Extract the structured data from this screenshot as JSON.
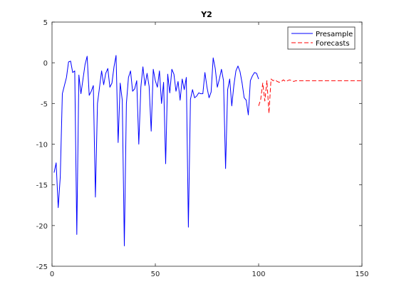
{
  "chart_data": {
    "type": "line",
    "title": "Y2",
    "xlabel": "",
    "ylabel": "",
    "xlim": [
      0,
      150
    ],
    "ylim": [
      -25,
      5
    ],
    "xticks": [
      0,
      50,
      100,
      150
    ],
    "yticks": [
      5,
      0,
      -5,
      -10,
      -15,
      -20,
      -25
    ],
    "grid": false,
    "legend_position": "top-right",
    "series": [
      {
        "name": "Presample",
        "color": "#0000ff",
        "style": "solid",
        "x": [
          1,
          2,
          3,
          4,
          5,
          6,
          7,
          8,
          9,
          10,
          11,
          12,
          13,
          14,
          15,
          16,
          17,
          18,
          19,
          20,
          21,
          22,
          23,
          24,
          25,
          26,
          27,
          28,
          29,
          30,
          31,
          32,
          33,
          34,
          35,
          36,
          37,
          38,
          39,
          40,
          41,
          42,
          43,
          44,
          45,
          46,
          47,
          48,
          49,
          50,
          51,
          52,
          53,
          54,
          55,
          56,
          57,
          58,
          59,
          60,
          61,
          62,
          63,
          64,
          65,
          66,
          67,
          68,
          69,
          70,
          71,
          72,
          73,
          74,
          75,
          76,
          77,
          78,
          79,
          80,
          81,
          82,
          83,
          84,
          85,
          86,
          87,
          88,
          89,
          90,
          91,
          92,
          93,
          94,
          95,
          96,
          97,
          98,
          99,
          100
        ],
        "y": [
          -13.5,
          -12.3,
          -17.8,
          -14,
          -3.8,
          -2.8,
          -1.8,
          0.1,
          0.2,
          -1.2,
          -1,
          -21.1,
          -1.5,
          -3.8,
          -2,
          -0.2,
          0.8,
          -4,
          -3.5,
          -2.8,
          -16.5,
          -5,
          -3,
          -1,
          -2.7,
          -1.3,
          -0.7,
          -3,
          -2.5,
          -0.5,
          0.9,
          -9.8,
          -2.5,
          -4.6,
          -22.5,
          -5,
          -1.8,
          -1,
          -3.5,
          -3.2,
          -2.2,
          -10,
          -3,
          -0.5,
          -2.8,
          -1.3,
          -2.9,
          -8.4,
          -0.8,
          -2.2,
          -3,
          -1,
          -5,
          -2.4,
          -12.4,
          -1.4,
          -3.7,
          -0.8,
          -1.4,
          -3.5,
          -2.3,
          -4.6,
          -2,
          -3.3,
          -1.8,
          -20.2,
          -4.5,
          -3.3,
          -4.3,
          -4.1,
          -3.7,
          -3.8,
          -3.8,
          -1.2,
          -3,
          -4.3,
          -3.6,
          0.6,
          -0.7,
          -3,
          -2,
          -0.8,
          -2.2,
          -13,
          -3.3,
          -2,
          -5.3,
          -2.8,
          -1,
          -0.4,
          -1.1,
          -2.5,
          -4.3,
          -4.6,
          -6.4,
          -2.2,
          -1.6,
          -1.2,
          -1.3,
          -2
        ]
      },
      {
        "name": "Forecasts",
        "color": "#ff0000",
        "style": "dashed",
        "x": [
          100,
          101,
          102,
          103,
          104,
          105,
          106,
          107,
          108,
          109,
          110,
          111,
          112,
          113,
          114,
          115,
          116,
          117,
          118,
          119,
          120,
          121,
          122,
          123,
          124,
          125,
          126,
          127,
          128,
          129,
          130,
          131,
          132,
          133,
          134,
          135,
          136,
          137,
          138,
          139,
          140,
          141,
          142,
          143,
          144,
          145,
          146,
          147,
          148,
          149,
          150
        ],
        "y": [
          -5.3,
          -4.5,
          -2.5,
          -4.7,
          -2.2,
          -6.2,
          -2,
          -2.2,
          -2.1,
          -2.3,
          -2.4,
          -2.3,
          -2.1,
          -2.3,
          -2.2,
          -2.1,
          -2.2,
          -2.3,
          -2.2,
          -2.2,
          -2.2,
          -2.2,
          -2.2,
          -2.2,
          -2.2,
          -2.2,
          -2.2,
          -2.2,
          -2.2,
          -2.2,
          -2.2,
          -2.2,
          -2.2,
          -2.2,
          -2.2,
          -2.2,
          -2.2,
          -2.2,
          -2.2,
          -2.2,
          -2.2,
          -2.2,
          -2.2,
          -2.2,
          -2.2,
          -2.2,
          -2.2,
          -2.2,
          -2.2,
          -2.2,
          -2.2
        ]
      }
    ]
  }
}
